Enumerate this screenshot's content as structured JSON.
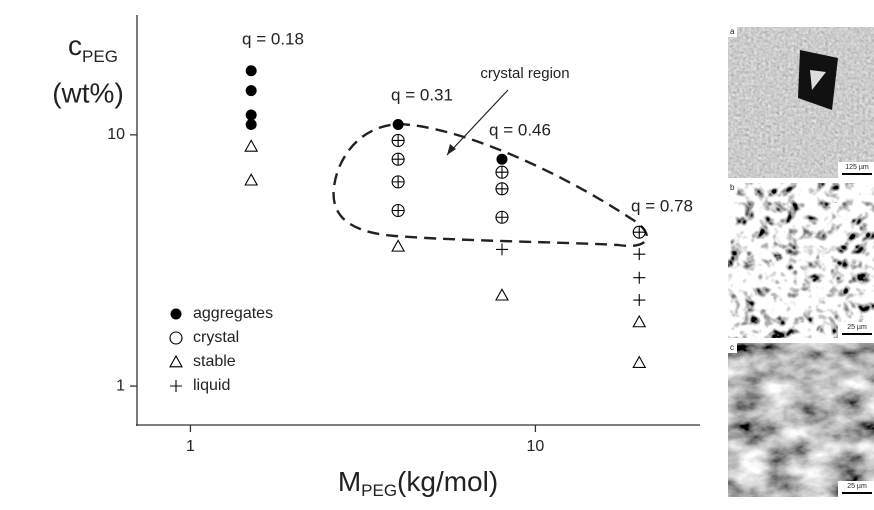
{
  "chart_data": {
    "type": "scatter",
    "ylabel": {
      "main": "c",
      "sub": "PEG",
      "unit": "(wt%)"
    },
    "xlabel": {
      "main": "M",
      "sub": "PEG",
      "unit": "(kg/mol)"
    },
    "log_x": true,
    "log_y": true,
    "xlim": [
      0.7,
      30
    ],
    "ylim": [
      0.7,
      30
    ],
    "xticks": [
      1,
      10
    ],
    "yticks": [
      1,
      10
    ],
    "legend": "lower left",
    "annotations": [
      "q = 0.18",
      "q = 0.31",
      "q = 0.46",
      "q = 0.78",
      "crystal region"
    ],
    "series": [
      {
        "name": "aggregates",
        "color": "#000000",
        "marker": "filled-circle",
        "x": [
          1.5,
          1.5,
          1.5,
          1.5,
          4,
          8
        ],
        "values": [
          18,
          15,
          12,
          11,
          11,
          8
        ]
      },
      {
        "name": "crystal",
        "color": "#000000",
        "marker": "circle",
        "x": [
          4,
          4,
          4,
          4,
          8,
          8,
          8,
          20
        ],
        "values": [
          9.5,
          8,
          6.5,
          5,
          7.1,
          6.1,
          4.7,
          4.1
        ]
      },
      {
        "name": "stable",
        "color": "#000000",
        "marker": "triangle",
        "x": [
          1.5,
          1.5,
          4,
          8,
          20,
          20
        ],
        "values": [
          9,
          6.6,
          3.6,
          2.3,
          1.8,
          1.24
        ]
      },
      {
        "name": "liquid",
        "color": "#000000",
        "marker": "plus",
        "x": [
          4,
          4,
          4,
          4,
          8,
          8,
          8,
          8,
          20,
          20,
          20,
          20
        ],
        "values": [
          9.5,
          8,
          6.5,
          5,
          7.1,
          6.1,
          4.7,
          3.5,
          4.1,
          3.35,
          2.7,
          2.2
        ]
      }
    ]
  },
  "micrographs": [
    {
      "label": "a",
      "scale": "125 µm"
    },
    {
      "label": "b",
      "scale": "25 µm"
    },
    {
      "label": "c",
      "scale": "25 µm"
    }
  ]
}
